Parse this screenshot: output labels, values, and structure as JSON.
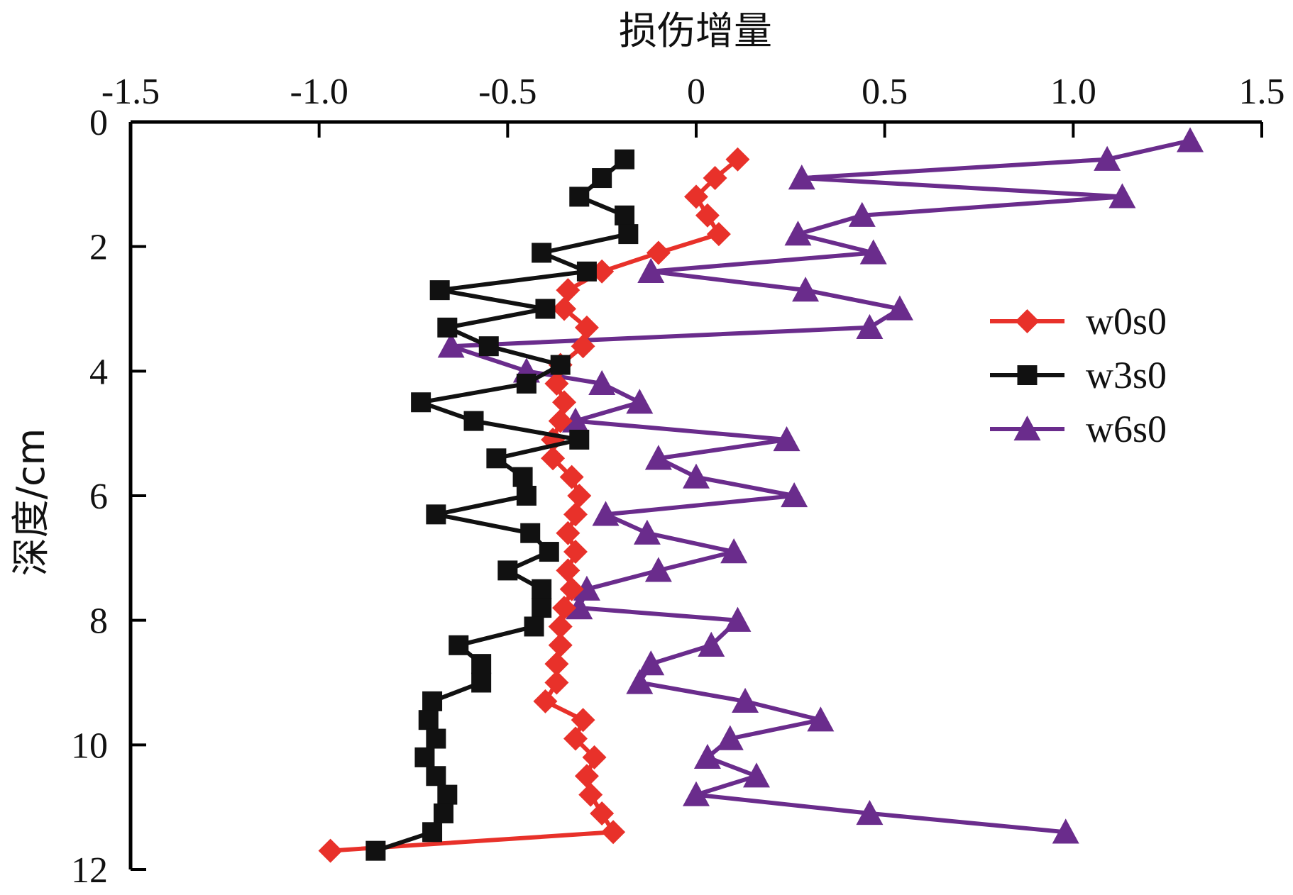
{
  "chart_data": {
    "type": "line",
    "xlabel": "损伤增量",
    "ylabel": "深度/cm",
    "xlim": [
      -1.5,
      1.5
    ],
    "ylim": [
      0,
      12
    ],
    "x_ticks": [
      -1.5,
      -1.0,
      -0.5,
      0,
      0.5,
      1.0,
      1.5
    ],
    "x_tick_labels": [
      "-1.5",
      "-1.0",
      "-0.5",
      "0",
      "0.5",
      "1.0",
      "1.5"
    ],
    "y_ticks": [
      0,
      2,
      4,
      6,
      8,
      10,
      12
    ],
    "y_tick_labels": [
      "0",
      "2",
      "4",
      "6",
      "8",
      "10",
      "12"
    ],
    "x_axis_position": "top",
    "y_axis_inverted": true,
    "grid": false,
    "legend_position": "right",
    "series": [
      {
        "name": "w0s0",
        "color": "#e8312a",
        "marker": "diamond",
        "points": [
          [
            0.11,
            0.6
          ],
          [
            0.05,
            0.9
          ],
          [
            0.0,
            1.2
          ],
          [
            0.03,
            1.5
          ],
          [
            0.06,
            1.8
          ],
          [
            -0.1,
            2.1
          ],
          [
            -0.25,
            2.4
          ],
          [
            -0.34,
            2.7
          ],
          [
            -0.35,
            3.0
          ],
          [
            -0.29,
            3.3
          ],
          [
            -0.3,
            3.6
          ],
          [
            -0.36,
            3.9
          ],
          [
            -0.37,
            4.2
          ],
          [
            -0.35,
            4.5
          ],
          [
            -0.36,
            4.8
          ],
          [
            -0.38,
            5.1
          ],
          [
            -0.38,
            5.4
          ],
          [
            -0.33,
            5.7
          ],
          [
            -0.31,
            6.0
          ],
          [
            -0.32,
            6.3
          ],
          [
            -0.34,
            6.6
          ],
          [
            -0.32,
            6.9
          ],
          [
            -0.34,
            7.2
          ],
          [
            -0.33,
            7.5
          ],
          [
            -0.35,
            7.8
          ],
          [
            -0.36,
            8.1
          ],
          [
            -0.36,
            8.4
          ],
          [
            -0.37,
            8.7
          ],
          [
            -0.37,
            9.0
          ],
          [
            -0.4,
            9.3
          ],
          [
            -0.3,
            9.6
          ],
          [
            -0.32,
            9.9
          ],
          [
            -0.27,
            10.2
          ],
          [
            -0.29,
            10.5
          ],
          [
            -0.28,
            10.8
          ],
          [
            -0.25,
            11.1
          ],
          [
            -0.22,
            11.4
          ],
          [
            -0.97,
            11.7
          ]
        ]
      },
      {
        "name": "w3s0",
        "color": "#111111",
        "marker": "square",
        "points": [
          [
            -0.19,
            0.6
          ],
          [
            -0.25,
            0.9
          ],
          [
            -0.31,
            1.2
          ],
          [
            -0.19,
            1.5
          ],
          [
            -0.18,
            1.8
          ],
          [
            -0.41,
            2.1
          ],
          [
            -0.29,
            2.4
          ],
          [
            -0.68,
            2.7
          ],
          [
            -0.4,
            3.0
          ],
          [
            -0.66,
            3.3
          ],
          [
            -0.55,
            3.6
          ],
          [
            -0.36,
            3.9
          ],
          [
            -0.45,
            4.2
          ],
          [
            -0.73,
            4.5
          ],
          [
            -0.59,
            4.8
          ],
          [
            -0.31,
            5.1
          ],
          [
            -0.53,
            5.4
          ],
          [
            -0.46,
            5.7
          ],
          [
            -0.45,
            6.0
          ],
          [
            -0.69,
            6.3
          ],
          [
            -0.44,
            6.6
          ],
          [
            -0.39,
            6.9
          ],
          [
            -0.5,
            7.2
          ],
          [
            -0.41,
            7.5
          ],
          [
            -0.41,
            7.8
          ],
          [
            -0.43,
            8.1
          ],
          [
            -0.63,
            8.4
          ],
          [
            -0.57,
            8.7
          ],
          [
            -0.57,
            9.0
          ],
          [
            -0.7,
            9.3
          ],
          [
            -0.71,
            9.6
          ],
          [
            -0.69,
            9.9
          ],
          [
            -0.72,
            10.2
          ],
          [
            -0.69,
            10.5
          ],
          [
            -0.66,
            10.8
          ],
          [
            -0.67,
            11.1
          ],
          [
            -0.7,
            11.4
          ],
          [
            -0.85,
            11.7
          ]
        ]
      },
      {
        "name": "w6s0",
        "color": "#6a2c8c",
        "marker": "triangle",
        "points": [
          [
            1.31,
            0.3
          ],
          [
            1.09,
            0.6
          ],
          [
            0.28,
            0.9
          ],
          [
            1.13,
            1.2
          ],
          [
            0.44,
            1.5
          ],
          [
            0.27,
            1.8
          ],
          [
            0.47,
            2.1
          ],
          [
            -0.12,
            2.4
          ],
          [
            0.29,
            2.7
          ],
          [
            0.54,
            3.0
          ],
          [
            0.46,
            3.3
          ],
          [
            -0.65,
            3.6
          ],
          [
            -0.45,
            4.0
          ],
          [
            -0.25,
            4.2
          ],
          [
            -0.15,
            4.5
          ],
          [
            -0.32,
            4.8
          ],
          [
            0.24,
            5.1
          ],
          [
            -0.1,
            5.4
          ],
          [
            0.0,
            5.7
          ],
          [
            0.26,
            6.0
          ],
          [
            -0.24,
            6.3
          ],
          [
            -0.13,
            6.6
          ],
          [
            0.1,
            6.9
          ],
          [
            -0.1,
            7.2
          ],
          [
            -0.29,
            7.5
          ],
          [
            -0.31,
            7.8
          ],
          [
            0.11,
            8.0
          ],
          [
            0.04,
            8.4
          ],
          [
            -0.12,
            8.7
          ],
          [
            -0.15,
            9.0
          ],
          [
            0.13,
            9.3
          ],
          [
            0.33,
            9.6
          ],
          [
            0.09,
            9.9
          ],
          [
            0.03,
            10.2
          ],
          [
            0.16,
            10.5
          ],
          [
            0.0,
            10.8
          ],
          [
            0.46,
            11.1
          ],
          [
            0.98,
            11.4
          ]
        ]
      }
    ]
  }
}
